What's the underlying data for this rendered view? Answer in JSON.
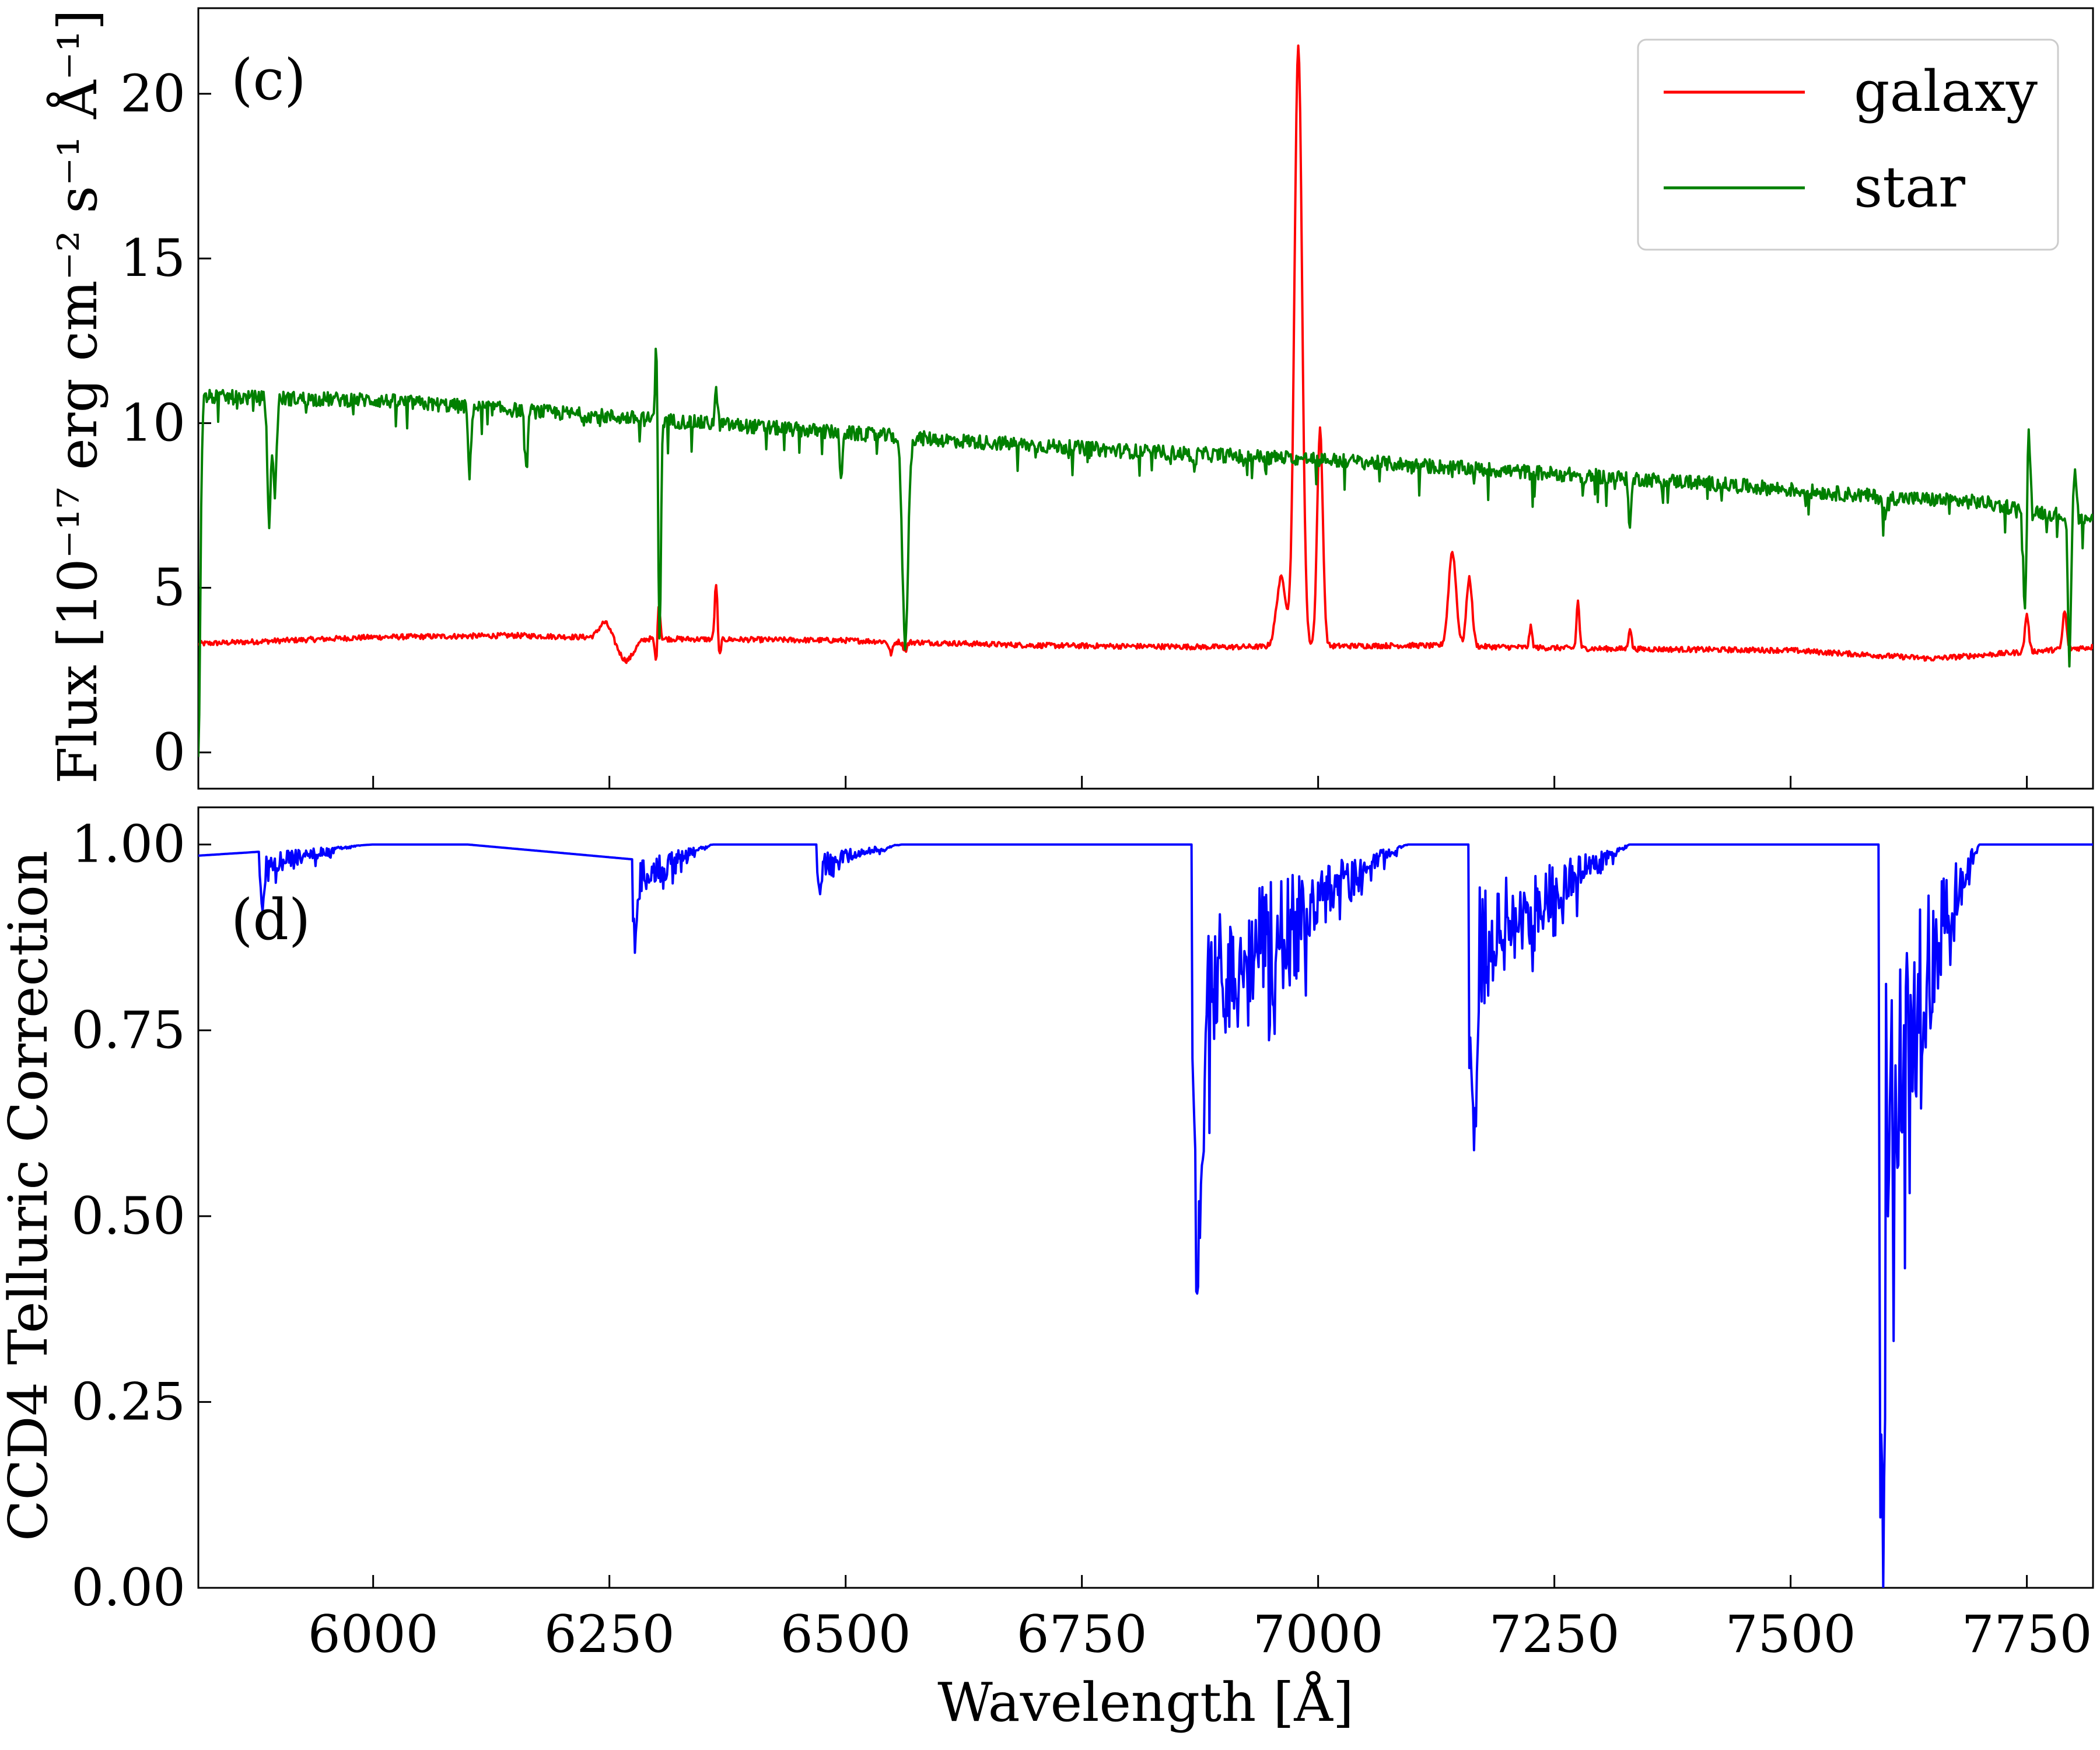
{
  "chart_data": [
    {
      "id": "panel-c",
      "type": "line",
      "panel_label": "(c)",
      "ylabel": "Flux [10⁻¹⁷ erg cm⁻² s⁻¹ Å⁻¹]",
      "xlabel": "",
      "xlim": [
        5815,
        7820
      ],
      "ylim": [
        -1.1,
        22.6
      ],
      "xticks": [
        6000,
        6250,
        6500,
        6750,
        7000,
        7250,
        7500,
        7750
      ],
      "yticks": [
        0,
        5,
        10,
        15,
        20
      ],
      "ytick_labels": [
        "0",
        "5",
        "10",
        "15",
        "20"
      ],
      "show_xtick_labels": false,
      "legend_position": "top-right",
      "series": [
        {
          "name": "galaxy",
          "color": "#ff0000",
          "continuum": [
            [
              5815,
              3.3
            ],
            [
              6000,
              3.5
            ],
            [
              6150,
              3.55
            ],
            [
              6300,
              3.45
            ],
            [
              6500,
              3.4
            ],
            [
              6700,
              3.25
            ],
            [
              6900,
              3.2
            ],
            [
              7100,
              3.25
            ],
            [
              7300,
              3.15
            ],
            [
              7500,
              3.1
            ],
            [
              7650,
              2.85
            ],
            [
              7820,
              3.2
            ]
          ],
          "features": [
            [
              6245,
              3.95,
              6
            ],
            [
              6268,
              2.8,
              8
            ],
            [
              6300,
              2.4,
              1.5
            ],
            [
              6302,
              4.9,
              1.5
            ],
            [
              6363,
              5.2,
              1.5
            ],
            [
              6366,
              2.8,
              1.5
            ],
            [
              6548,
              3.0,
              2
            ],
            [
              6563,
              3.1,
              2
            ],
            [
              6961,
              5.3,
              5
            ],
            [
              6979,
              21.5,
              4
            ],
            [
              7002,
              9.8,
              3
            ],
            [
              7142,
              6.1,
              4
            ],
            [
              7160,
              5.3,
              3
            ],
            [
              7225,
              3.8,
              1.5
            ],
            [
              7275,
              4.6,
              1.5
            ],
            [
              7330,
              3.8,
              1.5
            ],
            [
              7750,
              4.2,
              2
            ],
            [
              7790,
              4.3,
              2
            ]
          ],
          "noise": 0.08
        },
        {
          "name": "star",
          "color": "#008000",
          "continuum": [
            [
              5815,
              10.8
            ],
            [
              6000,
              10.7
            ],
            [
              6200,
              10.3
            ],
            [
              6400,
              9.9
            ],
            [
              6600,
              9.5
            ],
            [
              6800,
              9.15
            ],
            [
              7000,
              8.9
            ],
            [
              7200,
              8.55
            ],
            [
              7400,
              8.2
            ],
            [
              7600,
              7.75
            ],
            [
              7700,
              7.6
            ],
            [
              7820,
              7.05
            ]
          ],
          "features": [
            [
              5815,
              0.0,
              2
            ],
            [
              5890,
              6.9,
              1.8
            ],
            [
              5896,
              7.9,
              1.8
            ],
            [
              6102,
              8.4,
              1.5
            ],
            [
              6162,
              8.5,
              1.5
            ],
            [
              6300,
              13.0,
              1.3
            ],
            [
              6303,
              3.4,
              1.5
            ],
            [
              6363,
              11.0,
              1.3
            ],
            [
              6495,
              8.2,
              1.3
            ],
            [
              6563,
              3.3,
              3
            ],
            [
              6868,
              8.7,
              2
            ],
            [
              6920,
              8.8,
              1.5
            ],
            [
              7281,
              7.9,
              1.5
            ],
            [
              7330,
              6.9,
              1.5
            ],
            [
              7600,
              7.2,
              2
            ],
            [
              7748,
              4.2,
              1.5
            ],
            [
              7752,
              9.7,
              1.5
            ],
            [
              7795,
              2.6,
              1.5
            ],
            [
              7801,
              8.7,
              1.5
            ]
          ],
          "noise": 0.22
        }
      ]
    },
    {
      "id": "panel-d",
      "type": "line",
      "panel_label": "(d)",
      "ylabel": "CCD4 Telluric Correction",
      "xlabel": "Wavelength [Å]",
      "xlim": [
        5815,
        7820
      ],
      "ylim": [
        0.0,
        1.05
      ],
      "xticks": [
        6000,
        6250,
        6500,
        6750,
        7000,
        7250,
        7500,
        7750
      ],
      "xtick_labels": [
        "6000",
        "6250",
        "6500",
        "6750",
        "7000",
        "7250",
        "7500",
        "7750"
      ],
      "yticks": [
        0.0,
        0.25,
        0.5,
        0.75,
        1.0
      ],
      "ytick_labels": [
        "0.00",
        "0.25",
        "0.50",
        "0.75",
        "1.00"
      ],
      "show_xtick_labels": true,
      "series": [
        {
          "name": "",
          "color": "#0000ff",
          "bands": [
            [
              5880,
              5990,
              0.93
            ],
            [
              6275,
              6360,
              0.88
            ],
            [
              6470,
              6560,
              0.94
            ],
            [
              6867,
              7095,
              0.52
            ],
            [
              7160,
              7330,
              0.64
            ],
            [
              7594,
              7700,
              0.15
            ]
          ]
        }
      ]
    }
  ]
}
